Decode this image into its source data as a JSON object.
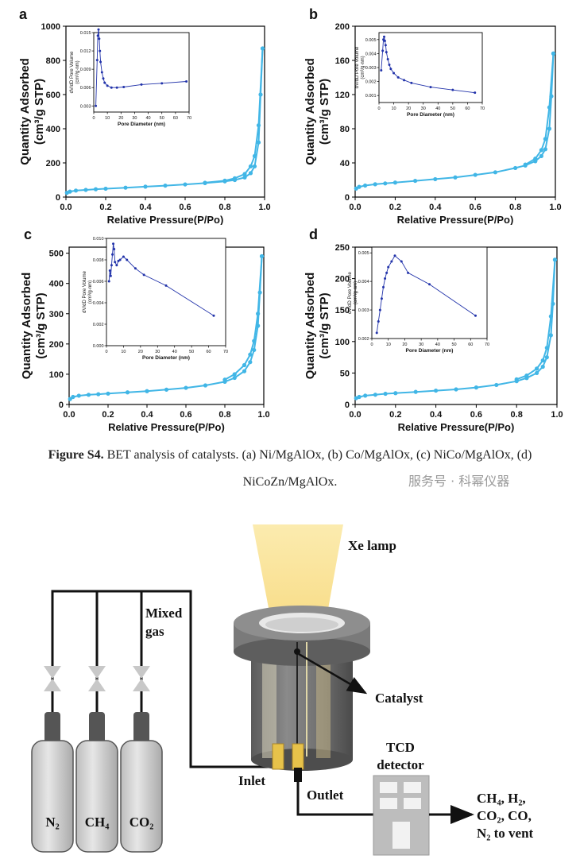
{
  "colors": {
    "series": "#41b6e6",
    "inset": "#2233aa",
    "axis": "#000000"
  },
  "chart_data": [
    {
      "type": "line",
      "panel_label": "a",
      "xlabel": "Relative Pressure(P/Po)",
      "ylabel": "Quantity Adsorbed",
      "ylabel2": "(cm³/g STP)",
      "xlim": [
        0,
        1
      ],
      "ylim": [
        0,
        1000
      ],
      "xticks": [
        "0.0",
        "0.2",
        "0.4",
        "0.6",
        "0.8",
        "1.0"
      ],
      "xtick_values": [
        0,
        0.2,
        0.4,
        0.6,
        0.8,
        1.0
      ],
      "yticks": [
        "0",
        "200",
        "400",
        "600",
        "800",
        "1000"
      ],
      "ytick_values": [
        0,
        200,
        400,
        600,
        800,
        1000
      ],
      "series": [
        {
          "x": [
            0.005,
            0.02,
            0.05,
            0.1,
            0.15,
            0.2,
            0.3,
            0.4,
            0.5,
            0.6,
            0.7,
            0.8,
            0.85,
            0.9,
            0.93,
            0.95,
            0.97,
            0.98,
            0.99
          ],
          "y": [
            25,
            32,
            38,
            42,
            46,
            49,
            55,
            61,
            67,
            74,
            82,
            92,
            100,
            115,
            140,
            180,
            320,
            600,
            870
          ]
        },
        {
          "x": [
            0.99,
            0.97,
            0.95,
            0.93,
            0.9,
            0.85,
            0.8,
            0.7
          ],
          "y": [
            870,
            420,
            240,
            180,
            135,
            110,
            96,
            84
          ]
        }
      ],
      "inset": {
        "xlabel": "Pore Diameter (nm)",
        "ylabel": "dV/dD Pore Volume",
        "ylabel2": "(cm³/g·nm)",
        "xlim": [
          0,
          70
        ],
        "ylim": [
          0.002,
          0.015
        ],
        "xticks": [
          "0",
          "10",
          "20",
          "30",
          "40",
          "50",
          "60",
          "70"
        ],
        "xtick_values": [
          0,
          10,
          20,
          30,
          40,
          50,
          60,
          70
        ],
        "yticks": [
          "0.003",
          "0.006",
          "0.009",
          "0.012",
          "0.015"
        ],
        "ytick_values": [
          0.003,
          0.006,
          0.009,
          0.012,
          0.015
        ],
        "x": [
          1.5,
          2.5,
          3,
          3.5,
          4,
          4.5,
          5,
          6,
          7,
          8,
          10,
          13,
          17,
          22,
          35,
          50,
          68
        ],
        "y": [
          0.003,
          0.0105,
          0.0145,
          0.0155,
          0.014,
          0.012,
          0.0102,
          0.0085,
          0.0075,
          0.0068,
          0.0063,
          0.006,
          0.006,
          0.0061,
          0.0065,
          0.0067,
          0.007
        ]
      }
    },
    {
      "type": "line",
      "panel_label": "b",
      "xlabel": "Relative Pressure(P/Po)",
      "ylabel": "Quantity Adsorbed",
      "ylabel2": "(cm³/g STP)",
      "xlim": [
        0,
        1
      ],
      "ylim": [
        0,
        200
      ],
      "xticks": [
        "0.0",
        "0.2",
        "0.4",
        "0.6",
        "0.8",
        "1.0"
      ],
      "xtick_values": [
        0,
        0.2,
        0.4,
        0.6,
        0.8,
        1.0
      ],
      "yticks": [
        "0",
        "40",
        "80",
        "120",
        "160",
        "200"
      ],
      "ytick_values": [
        0,
        40,
        80,
        120,
        160,
        200
      ],
      "series": [
        {
          "x": [
            0.005,
            0.02,
            0.05,
            0.1,
            0.15,
            0.2,
            0.3,
            0.4,
            0.5,
            0.6,
            0.7,
            0.8,
            0.85,
            0.9,
            0.93,
            0.95,
            0.97,
            0.98,
            0.99
          ],
          "y": [
            10,
            12,
            13.5,
            15,
            16,
            17,
            19,
            21,
            23,
            26,
            29,
            34,
            37,
            42,
            48,
            56,
            80,
            118,
            168
          ]
        },
        {
          "x": [
            0.99,
            0.97,
            0.95,
            0.93,
            0.9,
            0.85
          ],
          "y": [
            168,
            105,
            68,
            55,
            45,
            38
          ]
        }
      ],
      "inset": {
        "xlabel": "Pore Diameter (nm)",
        "ylabel": "dV/dD Pore Volume",
        "ylabel2": "(cm³/g·nm)",
        "xlim": [
          0,
          70
        ],
        "ylim": [
          0.0005,
          0.0055
        ],
        "xticks": [
          "0",
          "10",
          "20",
          "30",
          "40",
          "50",
          "60",
          "70"
        ],
        "xtick_values": [
          0,
          10,
          20,
          30,
          40,
          50,
          60,
          70
        ],
        "yticks": [
          "0.001",
          "0.002",
          "0.003",
          "0.004",
          "0.005"
        ],
        "ytick_values": [
          0.001,
          0.002,
          0.003,
          0.004,
          0.005
        ],
        "x": [
          1.5,
          2.5,
          3,
          3.5,
          4,
          4.5,
          5,
          6,
          7,
          8,
          10,
          13,
          17,
          22,
          35,
          50,
          65
        ],
        "y": [
          0.0028,
          0.0042,
          0.005,
          0.0052,
          0.0049,
          0.0046,
          0.0041,
          0.0036,
          0.0032,
          0.0029,
          0.0026,
          0.0023,
          0.0021,
          0.0019,
          0.0016,
          0.0014,
          0.0012
        ]
      }
    },
    {
      "type": "line",
      "panel_label": "c",
      "xlabel": "Relative Pressure(P/Po)",
      "ylabel": "Quantity Adsorbed",
      "ylabel2": "(cm³/g STP)",
      "xlim": [
        0,
        1
      ],
      "ylim": [
        0,
        520
      ],
      "xticks": [
        "0.0",
        "0.2",
        "0.4",
        "0.6",
        "0.8",
        "1.0"
      ],
      "xtick_values": [
        0,
        0.2,
        0.4,
        0.6,
        0.8,
        1.0
      ],
      "yticks": [
        "0",
        "100",
        "200",
        "300",
        "400",
        "500"
      ],
      "ytick_values": [
        0,
        100,
        200,
        300,
        400,
        500
      ],
      "series": [
        {
          "x": [
            0.005,
            0.02,
            0.05,
            0.1,
            0.15,
            0.2,
            0.3,
            0.4,
            0.5,
            0.6,
            0.7,
            0.8,
            0.85,
            0.9,
            0.93,
            0.95,
            0.97,
            0.98,
            0.99
          ],
          "y": [
            18,
            25,
            29,
            32,
            34,
            36,
            40,
            44,
            49,
            55,
            63,
            75,
            88,
            110,
            140,
            180,
            260,
            370,
            490
          ]
        },
        {
          "x": [
            0.99,
            0.97,
            0.95,
            0.93,
            0.9,
            0.85,
            0.8
          ],
          "y": [
            490,
            300,
            210,
            165,
            130,
            100,
            82
          ]
        }
      ],
      "inset": {
        "xlabel": "Pore Diameter (nm)",
        "ylabel": "dV/dD Pore Volume",
        "ylabel2": "(cm³/g·nm)",
        "xlim": [
          0,
          70
        ],
        "ylim": [
          0,
          0.01
        ],
        "xticks": [
          "0",
          "10",
          "20",
          "30",
          "40",
          "50",
          "60",
          "70"
        ],
        "xtick_values": [
          0,
          10,
          20,
          30,
          40,
          50,
          60,
          70
        ],
        "yticks": [
          "0.000",
          "0.002",
          "0.004",
          "0.006",
          "0.008",
          "0.010"
        ],
        "ytick_values": [
          0,
          0.002,
          0.004,
          0.006,
          0.008,
          0.01
        ],
        "x": [
          1.5,
          2,
          2.5,
          3,
          3.5,
          4,
          4.5,
          5,
          6,
          7,
          8,
          10,
          12,
          17,
          22,
          35,
          63
        ],
        "y": [
          0.006,
          0.007,
          0.0065,
          0.0075,
          0.0085,
          0.0095,
          0.009,
          0.0078,
          0.0075,
          0.0079,
          0.008,
          0.0083,
          0.008,
          0.0072,
          0.0066,
          0.0056,
          0.0028
        ]
      }
    },
    {
      "type": "line",
      "panel_label": "d",
      "xlabel": "Relative Pressure(P/Po)",
      "ylabel": "Quantity Adsorbed",
      "ylabel2": "(cm³/g STP)",
      "xlim": [
        0,
        1
      ],
      "ylim": [
        0,
        250
      ],
      "xticks": [
        "0.0",
        "0.2",
        "0.4",
        "0.6",
        "0.8",
        "1.0"
      ],
      "xtick_values": [
        0,
        0.2,
        0.4,
        0.6,
        0.8,
        1.0
      ],
      "yticks": [
        "0",
        "50",
        "100",
        "150",
        "200",
        "250"
      ],
      "ytick_values": [
        0,
        50,
        100,
        150,
        200,
        250
      ],
      "series": [
        {
          "x": [
            0.005,
            0.02,
            0.05,
            0.1,
            0.15,
            0.2,
            0.3,
            0.4,
            0.5,
            0.6,
            0.7,
            0.8,
            0.85,
            0.9,
            0.93,
            0.95,
            0.97,
            0.98,
            0.99
          ],
          "y": [
            10,
            12,
            14,
            15.5,
            17,
            18,
            20,
            22,
            24,
            27,
            31,
            37,
            42,
            50,
            60,
            75,
            110,
            160,
            230
          ]
        },
        {
          "x": [
            0.99,
            0.97,
            0.95,
            0.93,
            0.9,
            0.85,
            0.8
          ],
          "y": [
            230,
            140,
            90,
            70,
            57,
            46,
            40
          ]
        }
      ],
      "inset": {
        "xlabel": "Pore Diameter (nm)",
        "ylabel": "dV/dD Pore Volume",
        "ylabel2": "(cm³/g·nm)",
        "xlim": [
          0,
          70
        ],
        "ylim": [
          0.002,
          0.0052
        ],
        "xticks": [
          "0",
          "10",
          "20",
          "30",
          "40",
          "50",
          "60",
          "70"
        ],
        "xtick_values": [
          0,
          10,
          20,
          30,
          40,
          50,
          60,
          70
        ],
        "yticks": [
          "0.002",
          "0.003",
          "0.004",
          "0.005"
        ],
        "ytick_values": [
          0.002,
          0.003,
          0.004,
          0.005
        ],
        "x": [
          3,
          4,
          5,
          6,
          7,
          8,
          9,
          10,
          12,
          14,
          18,
          22,
          35,
          63
        ],
        "y": [
          0.0022,
          0.0026,
          0.003,
          0.0034,
          0.0038,
          0.0041,
          0.0043,
          0.0045,
          0.0047,
          0.0049,
          0.0047,
          0.0043,
          0.0039,
          0.0028
        ]
      }
    }
  ],
  "caption": {
    "label": "Figure S4.",
    "line1": " BET analysis of catalysts. (a) Ni/MgAlOx, (b) Co/MgAlOx, (c) NiCo/MgAlOx, (d)",
    "line2": "NiCoZn/MgAlOx."
  },
  "watermark": "服务号 · 科幂仪器",
  "schematic": {
    "xe_lamp": "Xe lamp",
    "mixed_gas_line1": "Mixed",
    "mixed_gas_line2": "gas",
    "catalyst": "Catalyst",
    "inlet": "Inlet",
    "outlet": "Outlet",
    "tcd_line1": "TCD",
    "tcd_line2": "detector",
    "cylinders": [
      "N₂",
      "CH₄",
      "CO₂"
    ],
    "vent_line1": "CH₄, H₂,",
    "vent_line2": "CO₂, CO,",
    "vent_line3": "N₂ to vent"
  }
}
